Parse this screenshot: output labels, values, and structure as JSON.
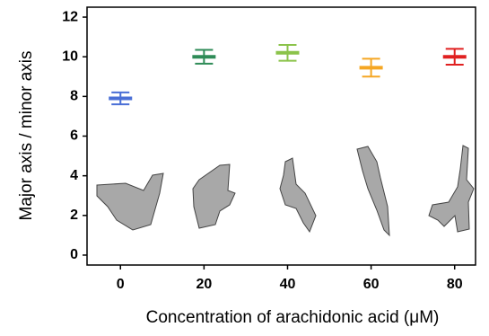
{
  "chart_data": {
    "type": "errorbar",
    "xlabel": "Concentration of arachidonic acid (μM)",
    "ylabel": "Major axis / minor axis",
    "x": [
      0,
      20,
      40,
      60,
      80
    ],
    "values": [
      7.9,
      10.0,
      10.2,
      9.45,
      10.0
    ],
    "errors": [
      0.3,
      0.35,
      0.4,
      0.45,
      0.4
    ],
    "colors": [
      "#4a6fd6",
      "#2e8b57",
      "#8bc34a",
      "#f5a623",
      "#e02020"
    ],
    "xlim": [
      -8,
      85
    ],
    "xticks": [
      0,
      20,
      40,
      60,
      80
    ],
    "ylim": [
      -0.5,
      12.5
    ],
    "yticks": [
      0,
      2,
      4,
      6,
      8,
      10,
      12
    ]
  }
}
